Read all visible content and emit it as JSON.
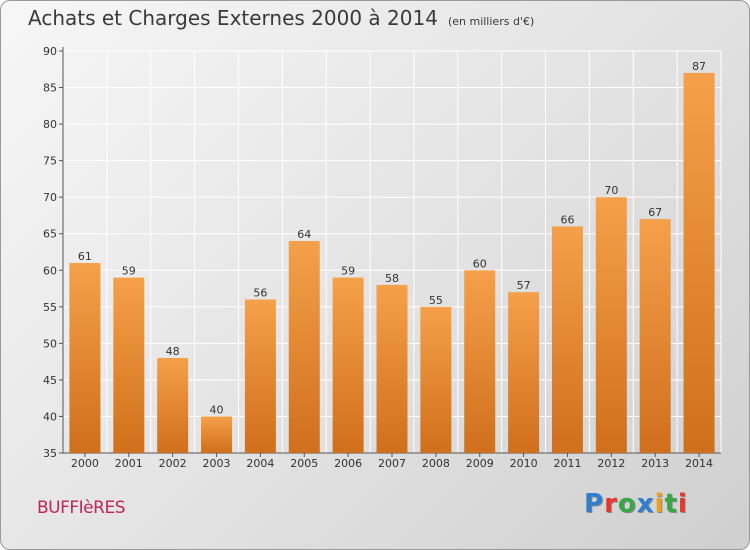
{
  "header": {
    "title": "Achats et Charges Externes 2000 à 2014",
    "unit": "(en milliers d'€)"
  },
  "footer": {
    "place": "BUFFIèRES",
    "logo": [
      "P",
      "r",
      "o",
      "x",
      "i",
      "t",
      "i"
    ],
    "logo_colors": [
      "#2f7fcf",
      "#e8362c",
      "#3aa54b",
      "#2f7fcf",
      "#f0a020",
      "#3aa54b",
      "#e8362c"
    ]
  },
  "chart_data": {
    "type": "bar",
    "title": "Achats et Charges Externes 2000 à 2014",
    "subtitle": "(en milliers d'€)",
    "xlabel": "",
    "ylabel": "",
    "categories": [
      "2000",
      "2001",
      "2002",
      "2003",
      "2004",
      "2005",
      "2006",
      "2007",
      "2008",
      "2009",
      "2010",
      "2011",
      "2012",
      "2013",
      "2014"
    ],
    "values": [
      61,
      59,
      48,
      40,
      56,
      64,
      59,
      58,
      55,
      60,
      57,
      66,
      70,
      67,
      87
    ],
    "ylim": [
      35,
      90
    ],
    "yticks": [
      35,
      40,
      45,
      50,
      55,
      60,
      65,
      70,
      75,
      80,
      85,
      90
    ],
    "grid": true,
    "legend": "none",
    "bar_color": "#f5a04a",
    "bar_color_dark": "#d06f1c"
  }
}
